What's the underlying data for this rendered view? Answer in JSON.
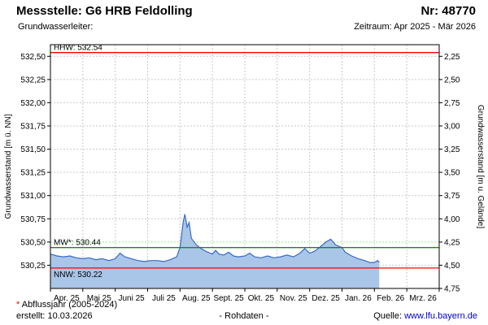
{
  "header": {
    "title": "Messstelle: G6 HRB Feldolling",
    "number": "Nr: 48770",
    "aquifer_label": "Grundwasserleiter:",
    "period": "Zeitraum: Apr 2025 - Mär 2026"
  },
  "chart_data": {
    "type": "area",
    "months": 12,
    "grid": true,
    "x_tick_labels": [
      "Apr. 25",
      "Mai 25",
      "Juni 25",
      "Juli 25",
      "Aug. 25",
      "Sept. 25",
      "Okt. 25",
      "Nov. 25",
      "Dez. 25",
      "Jan. 26",
      "Feb. 26",
      "Mrz. 26"
    ],
    "y_axis_left": {
      "label": "Grundwasserstand [m ü. NN]",
      "min": 530.0,
      "max": 532.625,
      "tick_values": [
        532.5,
        532.25,
        532.0,
        531.75,
        531.5,
        531.25,
        531.0,
        530.75,
        530.5,
        530.25
      ],
      "tick_labels": [
        "532,50",
        "532,25",
        "532,00",
        "531,75",
        "531,50",
        "531,25",
        "531,00",
        "530,75",
        "530,50",
        "530,25"
      ]
    },
    "y_axis_right": {
      "label": "Grundwasserstand [m u. Gelände]",
      "ground_elevation": 534.75,
      "tick_values": [
        2.25,
        2.5,
        2.75,
        3.0,
        3.25,
        3.5,
        3.75,
        4.0,
        4.25,
        4.5,
        4.75
      ],
      "tick_labels": [
        "2,25",
        "2,50",
        "2,75",
        "3,00",
        "3,25",
        "3,50",
        "3,75",
        "4,00",
        "4,25",
        "4,50",
        "4,75"
      ]
    },
    "reference_lines": [
      {
        "name": "HHW",
        "label": "HHW: 532.54",
        "value": 532.54,
        "color": "#ff0000",
        "label_below": false
      },
      {
        "name": "MW",
        "label": "MW*: 530.44",
        "value": 530.44,
        "color": "#009900",
        "label_below": false
      },
      {
        "name": "NNW",
        "label": "NNW: 530.22",
        "value": 530.22,
        "color": "#ff0000",
        "label_below": true
      }
    ],
    "series": [
      {
        "name": "Grundwasserstand Rohdaten",
        "color": "#3a6bc4",
        "fill": "#a9c5e8",
        "points": [
          [
            0.0,
            530.37
          ],
          [
            0.2,
            530.35
          ],
          [
            0.4,
            530.34
          ],
          [
            0.6,
            530.35
          ],
          [
            0.8,
            530.33
          ],
          [
            1.0,
            530.32
          ],
          [
            1.2,
            530.33
          ],
          [
            1.4,
            530.31
          ],
          [
            1.6,
            530.32
          ],
          [
            1.8,
            530.3
          ],
          [
            2.0,
            530.32
          ],
          [
            2.15,
            530.38
          ],
          [
            2.3,
            530.34
          ],
          [
            2.5,
            530.32
          ],
          [
            2.7,
            530.3
          ],
          [
            2.9,
            530.29
          ],
          [
            3.1,
            530.3
          ],
          [
            3.3,
            530.3
          ],
          [
            3.5,
            530.29
          ],
          [
            3.7,
            530.31
          ],
          [
            3.9,
            530.34
          ],
          [
            4.0,
            530.44
          ],
          [
            4.1,
            530.72
          ],
          [
            4.15,
            530.8
          ],
          [
            4.22,
            530.66
          ],
          [
            4.28,
            530.71
          ],
          [
            4.35,
            530.54
          ],
          [
            4.5,
            530.47
          ],
          [
            4.65,
            530.43
          ],
          [
            4.8,
            530.4
          ],
          [
            5.0,
            530.37
          ],
          [
            5.1,
            530.41
          ],
          [
            5.2,
            530.37
          ],
          [
            5.35,
            530.36
          ],
          [
            5.5,
            530.39
          ],
          [
            5.65,
            530.35
          ],
          [
            5.8,
            530.34
          ],
          [
            6.0,
            530.35
          ],
          [
            6.15,
            530.38
          ],
          [
            6.3,
            530.34
          ],
          [
            6.5,
            530.33
          ],
          [
            6.7,
            530.35
          ],
          [
            6.9,
            530.33
          ],
          [
            7.1,
            530.34
          ],
          [
            7.3,
            530.36
          ],
          [
            7.5,
            530.34
          ],
          [
            7.7,
            530.38
          ],
          [
            7.85,
            530.43
          ],
          [
            8.0,
            530.38
          ],
          [
            8.15,
            530.4
          ],
          [
            8.3,
            530.44
          ],
          [
            8.5,
            530.5
          ],
          [
            8.65,
            530.53
          ],
          [
            8.8,
            530.47
          ],
          [
            9.0,
            530.44
          ],
          [
            9.1,
            530.39
          ],
          [
            9.3,
            530.35
          ],
          [
            9.5,
            530.32
          ],
          [
            9.7,
            530.3
          ],
          [
            9.85,
            530.28
          ],
          [
            10.0,
            530.28
          ],
          [
            10.1,
            530.3
          ],
          [
            10.15,
            530.28
          ]
        ]
      }
    ]
  },
  "footer": {
    "footnote_star": "*",
    "footnote_text": " Abflussjahr (2005-2024)",
    "created": "erstellt: 10.03.2026",
    "data_type": "- Rohdaten -",
    "source_label": "Quelle: ",
    "source_link": "www.lfu.bayern.de"
  }
}
